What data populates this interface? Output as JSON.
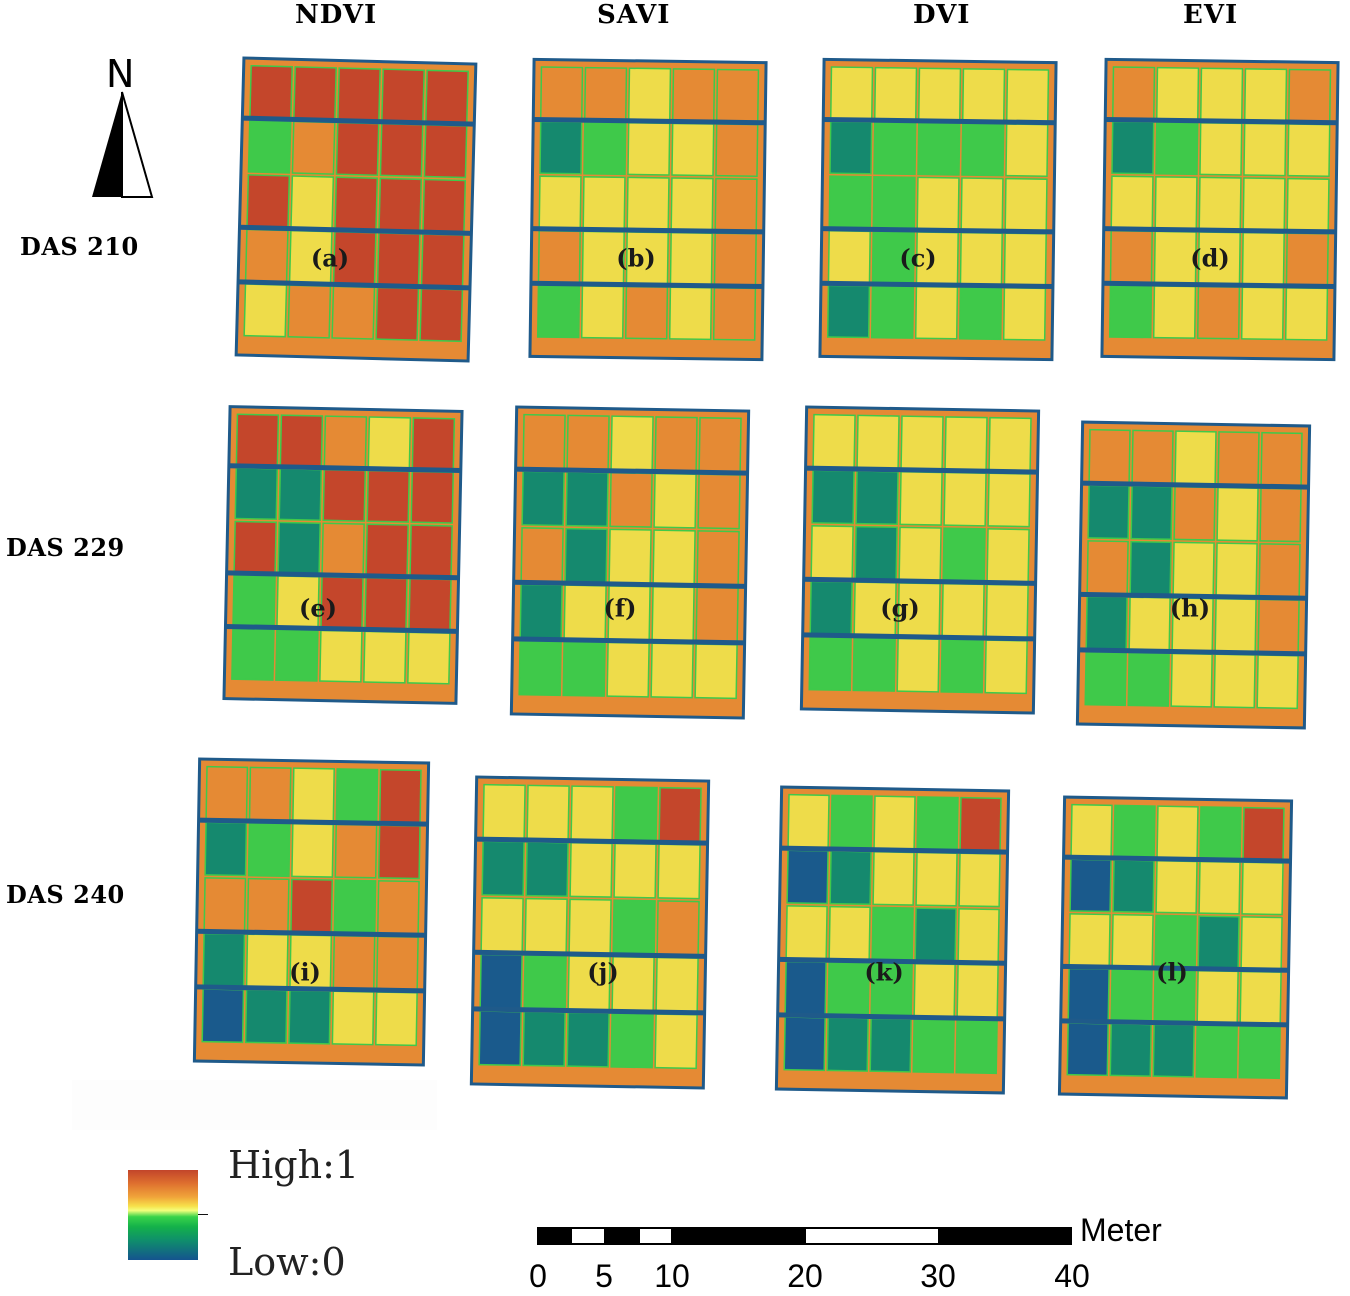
{
  "columns": [
    "NDVI",
    "SAVI",
    "DVI",
    "EVI"
  ],
  "rows": [
    "DAS 210",
    "DAS 229",
    "DAS 240"
  ],
  "north_arrow": {
    "letter": "N"
  },
  "panels": [
    {
      "label": "(a)"
    },
    {
      "label": "(b)"
    },
    {
      "label": "(c)"
    },
    {
      "label": "(d)"
    },
    {
      "label": "(e)"
    },
    {
      "label": "(f)"
    },
    {
      "label": "(g)"
    },
    {
      "label": "(h)"
    },
    {
      "label": "(i)"
    },
    {
      "label": "(j)"
    },
    {
      "label": "(k)"
    },
    {
      "label": "(l)"
    }
  ],
  "legend": {
    "high": "High:1",
    "low": "Low:0",
    "colors": [
      "#14538f",
      "#0f8f6b",
      "#14b14a",
      "#39d34a",
      "#f4ff7c",
      "#f7e04a",
      "#f0a43a",
      "#dd6d2e",
      "#c2452a"
    ]
  },
  "scale_bar": {
    "unit": "Meter",
    "ticks": [
      "0",
      "5",
      "10",
      "20",
      "30",
      "40"
    ]
  },
  "palette": {
    "high": "#c4462b",
    "mid_high": "#e58a34",
    "mid": "#eedc4a",
    "mid_low": "#3fc94a",
    "low": "#15896e",
    "very_low": "#1a5a8c",
    "border": "#1f5a8a"
  }
}
